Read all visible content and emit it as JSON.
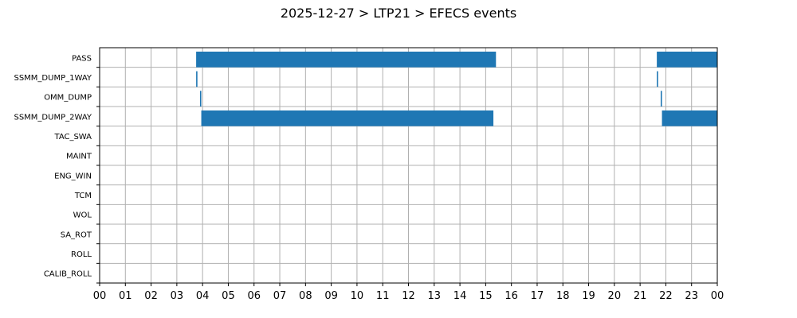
{
  "chart_data": {
    "type": "bar",
    "orientation": "horizontal-timeline",
    "title": "2025-12-27 > LTP21 > EFECS events",
    "xlabel": "",
    "ylabel": "",
    "xlim": [
      0,
      24
    ],
    "grid": true,
    "bar_color": "#1f77b4",
    "x_ticks": [
      "00",
      "01",
      "02",
      "03",
      "04",
      "05",
      "06",
      "07",
      "08",
      "09",
      "10",
      "11",
      "12",
      "13",
      "14",
      "15",
      "16",
      "17",
      "18",
      "19",
      "20",
      "21",
      "22",
      "23",
      "00"
    ],
    "categories": [
      "PASS",
      "SSMM_DUMP_1WAY",
      "OMM_DUMP",
      "SSMM_DUMP_2WAY",
      "TAC_SWA",
      "MAINT",
      "ENG_WIN",
      "TCM",
      "WOL",
      "SA_ROT",
      "ROLL",
      "CALIB_ROLL"
    ],
    "events": [
      {
        "category": "PASS",
        "intervals": [
          [
            3.75,
            15.4
          ],
          [
            21.65,
            24.0
          ]
        ]
      },
      {
        "category": "SSMM_DUMP_1WAY",
        "intervals": [
          [
            3.75,
            3.8
          ],
          [
            21.65,
            21.7
          ]
        ]
      },
      {
        "category": "OMM_DUMP",
        "intervals": [
          [
            3.9,
            3.95
          ],
          [
            21.8,
            21.85
          ]
        ]
      },
      {
        "category": "SSMM_DUMP_2WAY",
        "intervals": [
          [
            3.95,
            15.3
          ],
          [
            21.85,
            24.0
          ]
        ]
      },
      {
        "category": "TAC_SWA",
        "intervals": []
      },
      {
        "category": "MAINT",
        "intervals": []
      },
      {
        "category": "ENG_WIN",
        "intervals": []
      },
      {
        "category": "TCM",
        "intervals": []
      },
      {
        "category": "WOL",
        "intervals": []
      },
      {
        "category": "SA_ROT",
        "intervals": []
      },
      {
        "category": "ROLL",
        "intervals": []
      },
      {
        "category": "CALIB_ROLL",
        "intervals": []
      }
    ]
  }
}
